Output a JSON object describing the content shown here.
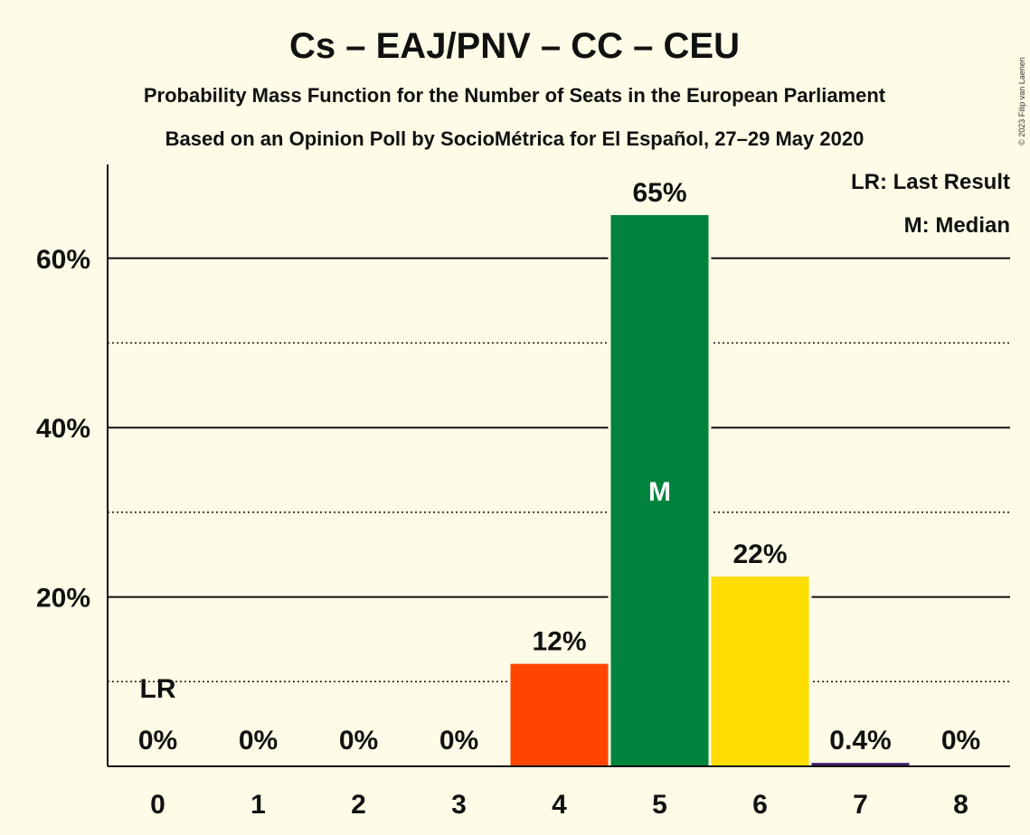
{
  "chart_data": {
    "type": "bar",
    "title": "Cs – EAJ/PNV – CC – CEU",
    "subtitle_1": "Probability Mass Function for the Number of Seats in the European Parliament",
    "subtitle_2": "Based on an Opinion Poll by SocioMétrica for El Español, 27–29 May 2020",
    "copyright": "© 2023 Filip van Laenen",
    "categories": [
      "0",
      "1",
      "2",
      "3",
      "4",
      "5",
      "6",
      "7",
      "8"
    ],
    "values": [
      0,
      0,
      0,
      0,
      12.1,
      65.1,
      22.4,
      0.4,
      0
    ],
    "value_labels": [
      "0%",
      "0%",
      "0%",
      "0%",
      "12%",
      "65%",
      "22%",
      "0.4%",
      "0%"
    ],
    "bar_colors": [
      "#fefbe6",
      "#fefbe6",
      "#fefbe6",
      "#fefbe6",
      "#ff4500",
      "#00843d",
      "#ffdd00",
      "#3b1b6b",
      "#fefbe6"
    ],
    "ylim": [
      0,
      70
    ],
    "yticks_major": [
      20,
      40,
      60
    ],
    "ytick_labels": [
      "20%",
      "40%",
      "60%"
    ],
    "yticks_minor": [
      10,
      30,
      50
    ],
    "last_result_category": "0",
    "last_result_marker": "LR",
    "median_category": "5",
    "median_marker": "M",
    "legend": [
      "LR: Last Result",
      "M: Median"
    ],
    "legend_position": "top-right",
    "grid": true
  }
}
